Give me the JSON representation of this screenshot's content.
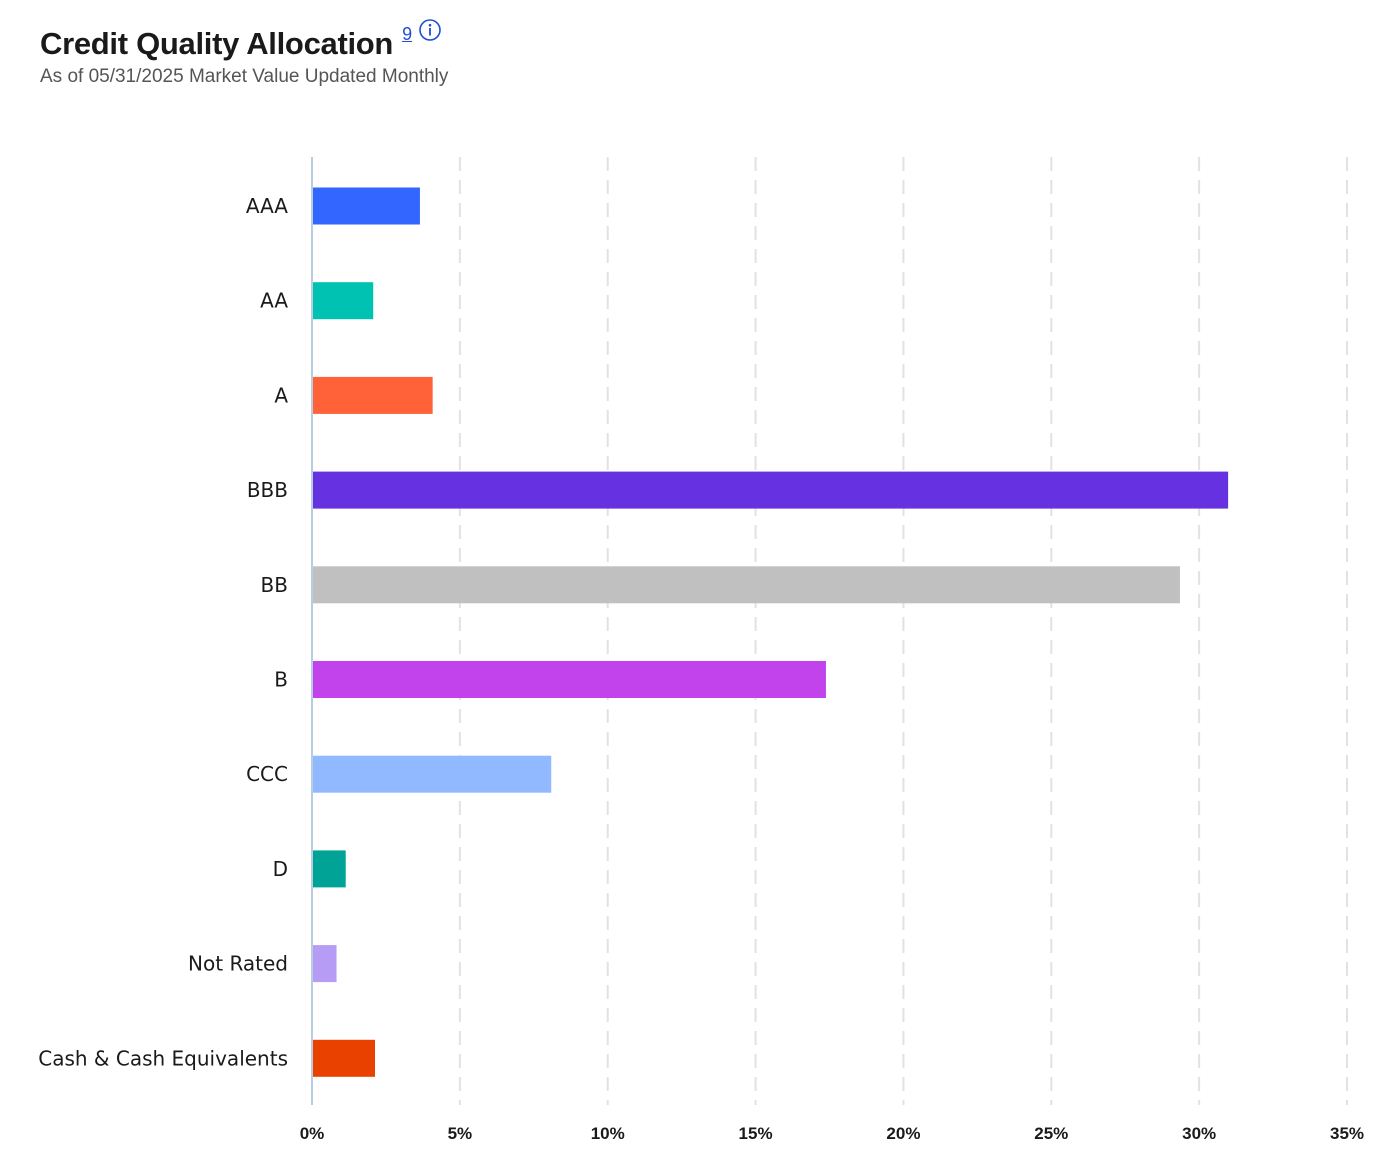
{
  "header": {
    "title": "Credit Quality Allocation",
    "footnote": "9",
    "subtitle": "As of 05/31/2025 Market Value Updated Monthly"
  },
  "colors": {
    "gridline": "#e2e2e2",
    "axis": "#b9cde0",
    "link": "#1f4ddb"
  },
  "chart_data": {
    "type": "bar",
    "orientation": "horizontal",
    "title": "Credit Quality Allocation",
    "categories": [
      "AAA",
      "AA",
      "A",
      "BBB",
      "BB",
      "B",
      "CCC",
      "D",
      "Not Rated",
      "Cash & Cash Equivalents"
    ],
    "values": [
      3.65,
      2.07,
      4.08,
      30.98,
      29.35,
      17.38,
      8.09,
      1.14,
      0.83,
      2.13
    ],
    "colors": [
      "#3366ff",
      "#00c2b2",
      "#ff6138",
      "#6631e0",
      "#c0c0c0",
      "#c243eb",
      "#90b9ff",
      "#00a396",
      "#b79cf5",
      "#e84100"
    ],
    "xlim": [
      0,
      35
    ],
    "ticks": [
      0,
      5,
      10,
      15,
      20,
      25,
      30,
      35
    ],
    "tick_labels": [
      "0%",
      "5%",
      "10%",
      "15%",
      "20%",
      "25%",
      "30%",
      "35%"
    ],
    "grid": true,
    "xlabel": "",
    "ylabel": ""
  }
}
